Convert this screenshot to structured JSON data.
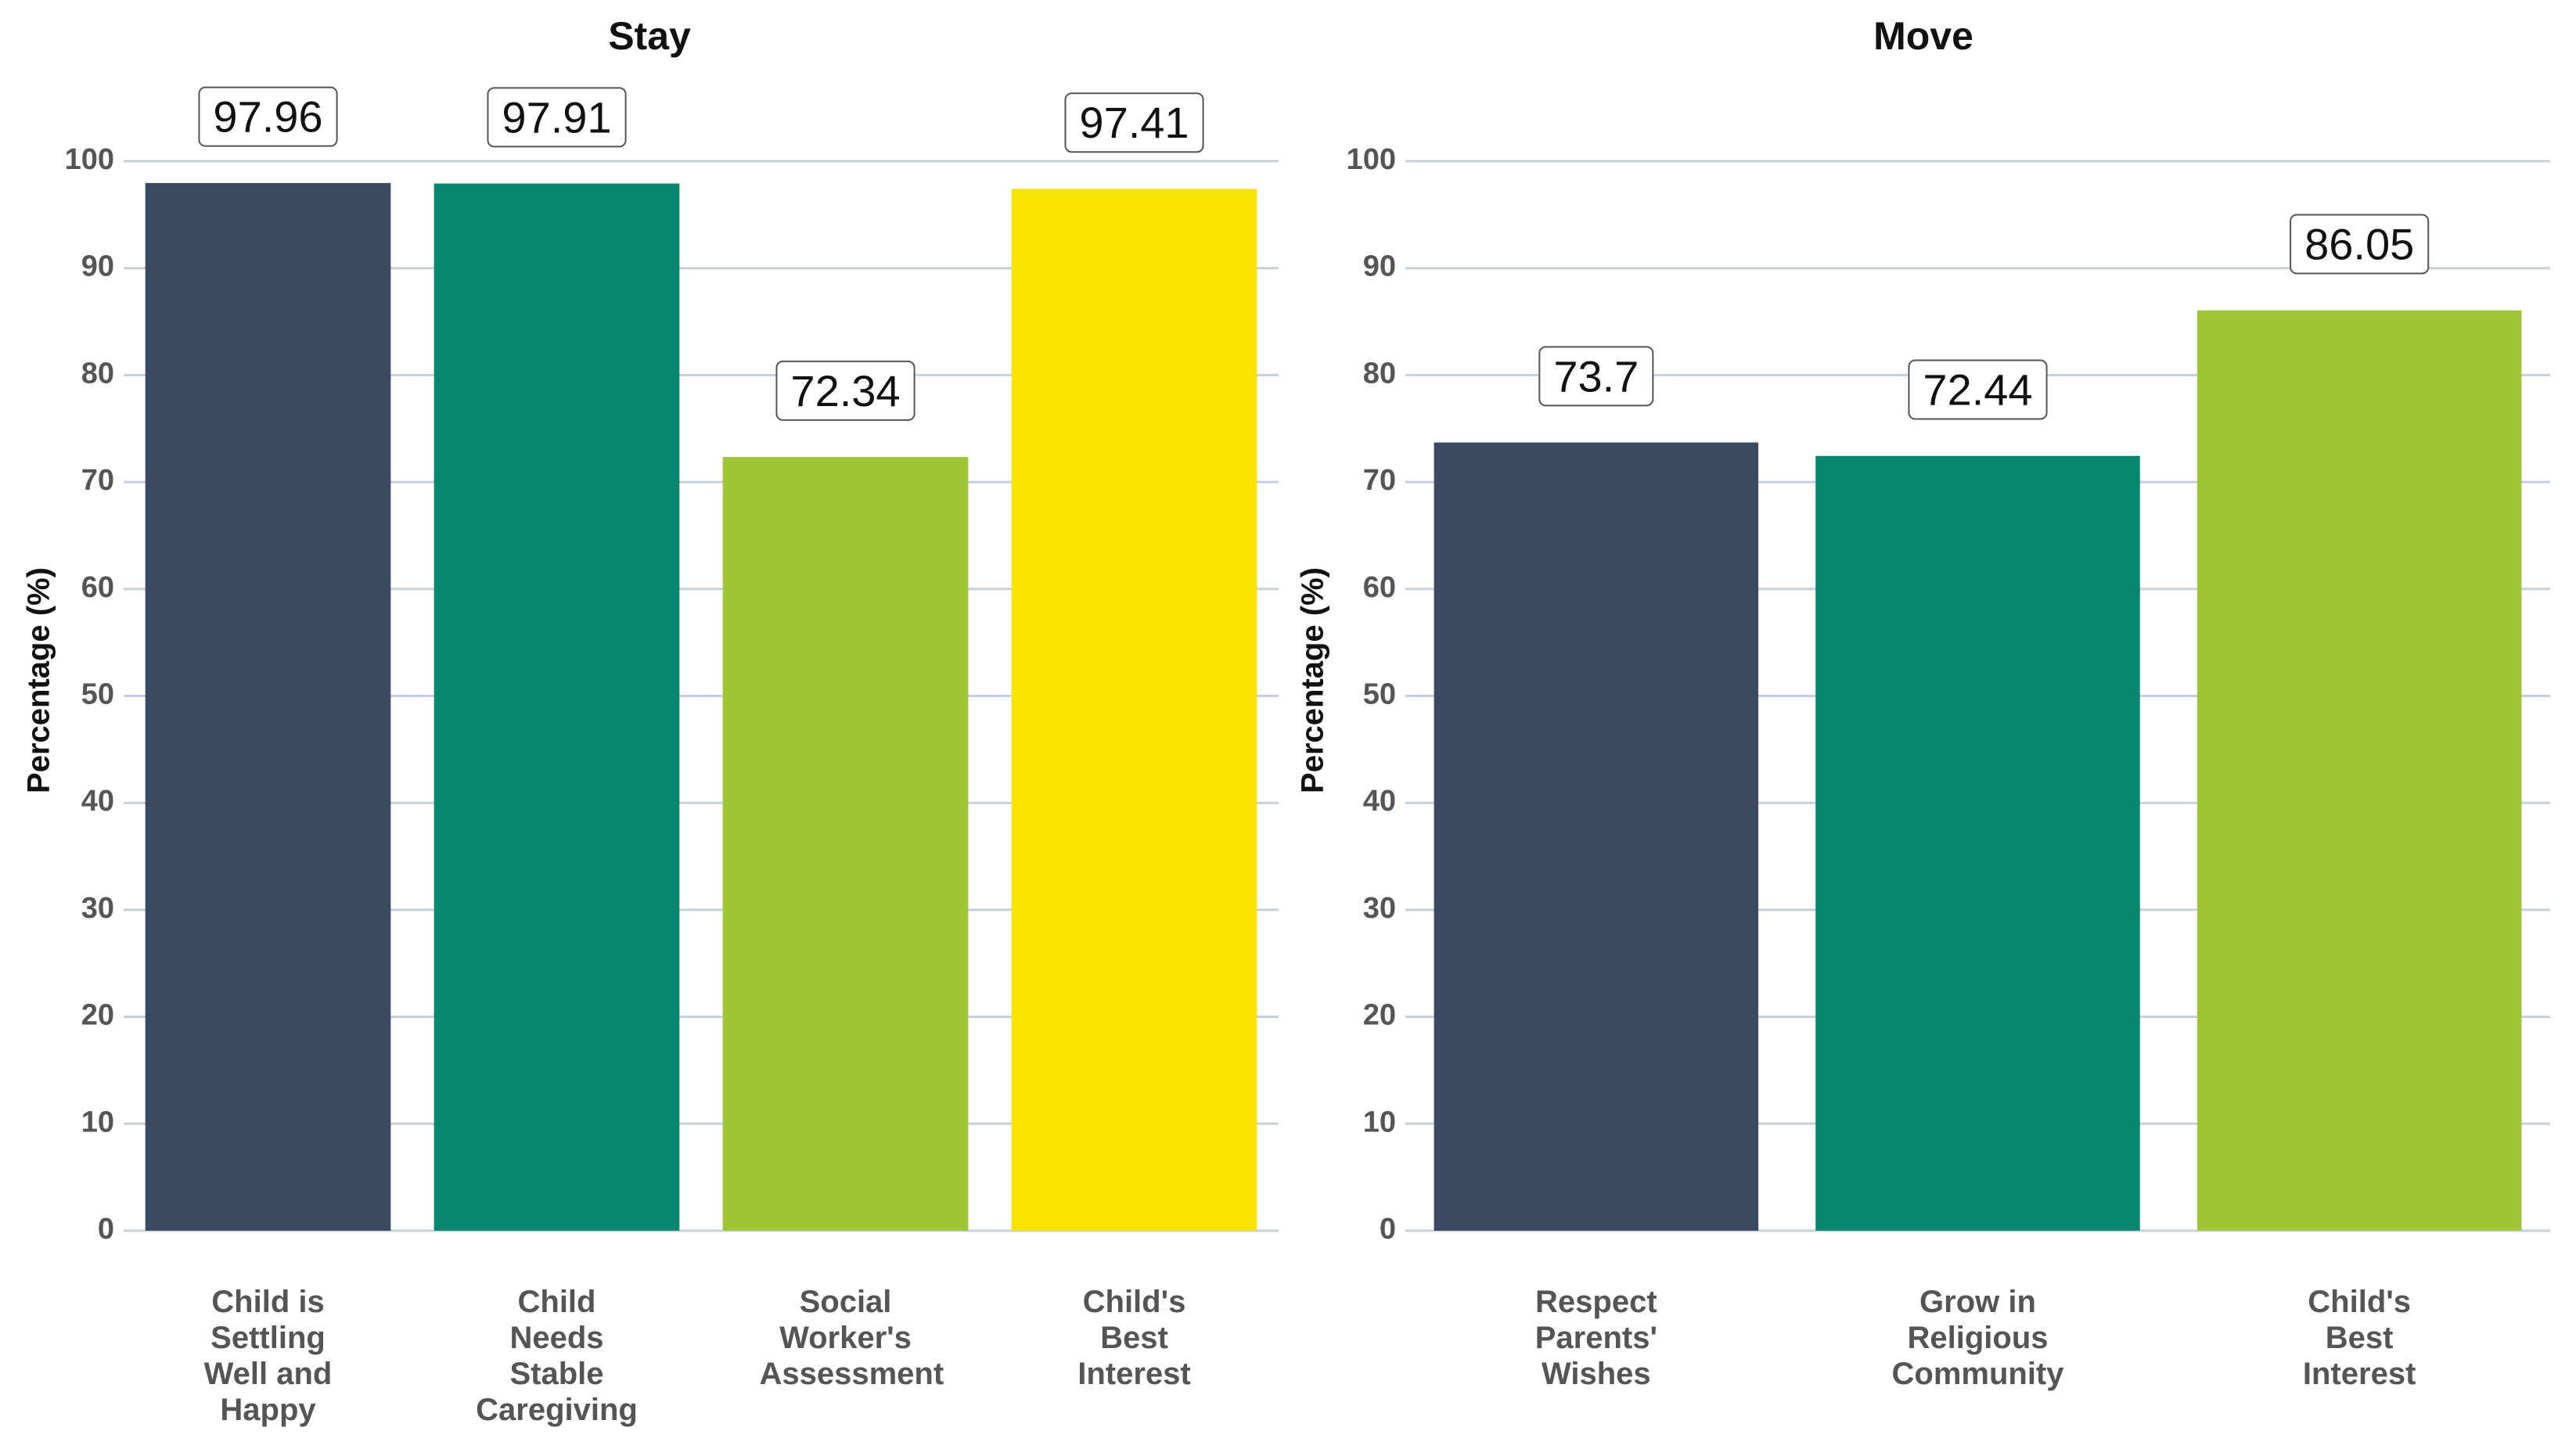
{
  "chart_data": [
    {
      "type": "bar",
      "title": "Stay",
      "y_label": "Percentage (%)",
      "categories": [
        "Child is Settling Well and Happy",
        "Child Needs Stable Caregiving",
        "Social Worker's Assessment",
        "Child's Best Interest"
      ],
      "values": [
        97.96,
        97.91,
        72.34,
        97.41
      ],
      "colors": [
        "#3b4a60",
        "#078770",
        "#9fc637",
        "#fae300"
      ],
      "ylim": [
        0,
        100
      ],
      "yticks": [
        0,
        10,
        20,
        30,
        40,
        50,
        60,
        70,
        80,
        90,
        100
      ],
      "grid": true
    },
    {
      "type": "bar",
      "title": "Move",
      "y_label": "Percentage (%)",
      "categories": [
        "Respect Parents' Wishes",
        "Grow in Religious Community",
        "Child's Best Interest"
      ],
      "values": [
        73.7,
        72.44,
        86.05
      ],
      "colors": [
        "#3b4a60",
        "#078770",
        "#9fc637"
      ],
      "ylim": [
        0,
        100
      ],
      "yticks": [
        0,
        10,
        20,
        30,
        40,
        50,
        60,
        70,
        80,
        90,
        100
      ],
      "grid": true
    }
  ]
}
